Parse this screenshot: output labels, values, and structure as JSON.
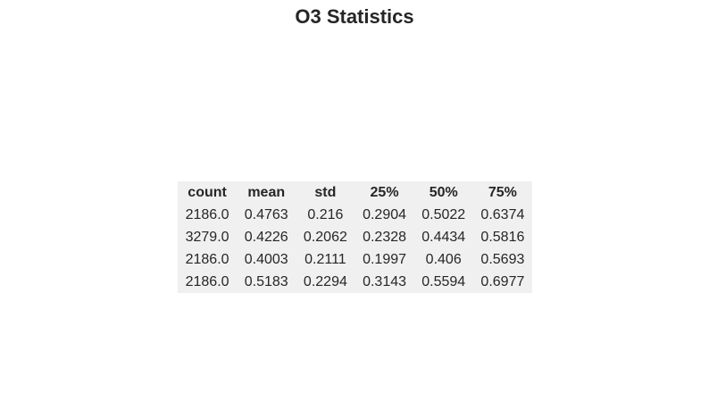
{
  "chart_data": {
    "type": "table",
    "title": "O3 Statistics",
    "columns": [
      "count",
      "mean",
      "std",
      "25%",
      "50%",
      "75%"
    ],
    "rows": [
      [
        "2186.0",
        "0.4763",
        "0.216",
        "0.2904",
        "0.5022",
        "0.6374"
      ],
      [
        "3279.0",
        "0.4226",
        "0.2062",
        "0.2328",
        "0.4434",
        "0.5816"
      ],
      [
        "2186.0",
        "0.4003",
        "0.2111",
        "0.1997",
        "0.406",
        "0.5693"
      ],
      [
        "2186.0",
        "0.5183",
        "0.2294",
        "0.3143",
        "0.5594",
        "0.6977"
      ]
    ]
  },
  "colors": {
    "table_background": "#f0f0f0",
    "text": "#262626"
  }
}
